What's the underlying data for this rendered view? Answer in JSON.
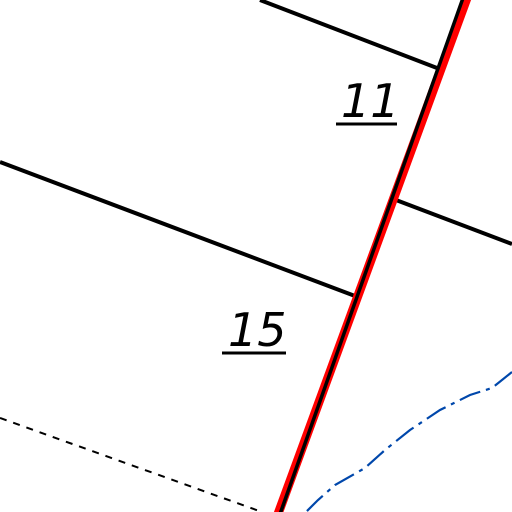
{
  "map": {
    "parcel_labels": [
      {
        "id": "parcel-11",
        "text": "11"
      },
      {
        "id": "parcel-15",
        "text": "15"
      }
    ],
    "colors": {
      "background": "#ffffff",
      "boundary_line": "#000000",
      "highlighted_boundary": "#ff0000",
      "dashed_line": "#000000",
      "stream_line": "#0047ab"
    }
  }
}
